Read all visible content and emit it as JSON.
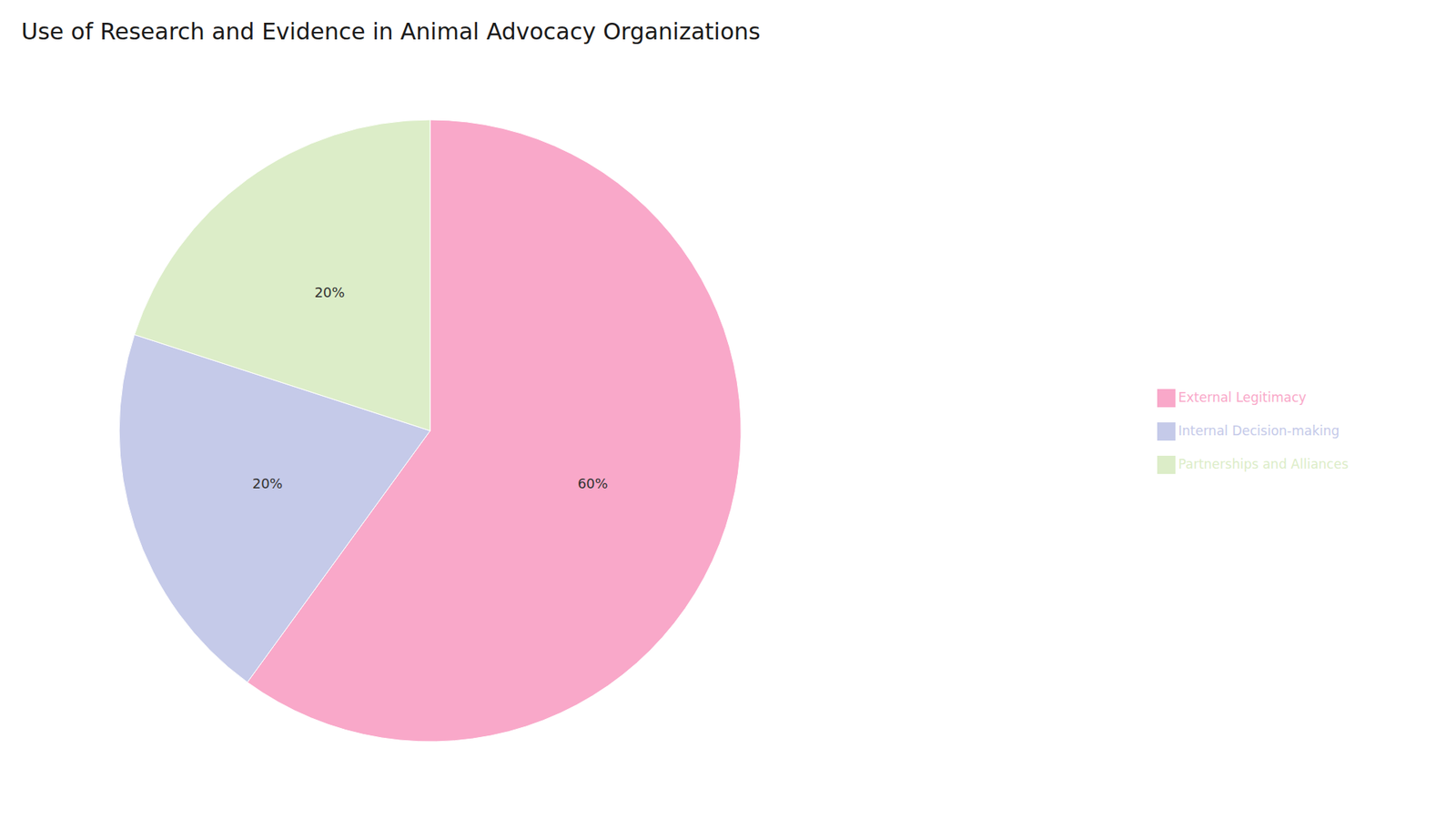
{
  "chart_data": {
    "type": "pie",
    "title": "Use of Research and Evidence in Animal Advocacy Organizations",
    "categories": [
      "External Legitimacy",
      "Internal Decision-making",
      "Partnerships and Alliances"
    ],
    "values": [
      60,
      20,
      20
    ],
    "value_labels": [
      "60%",
      "20%",
      "20%"
    ],
    "colors": [
      "#F9A8C9",
      "#C5CAE9",
      "#DCEDC8"
    ],
    "data_labels": true,
    "legend": "right"
  }
}
